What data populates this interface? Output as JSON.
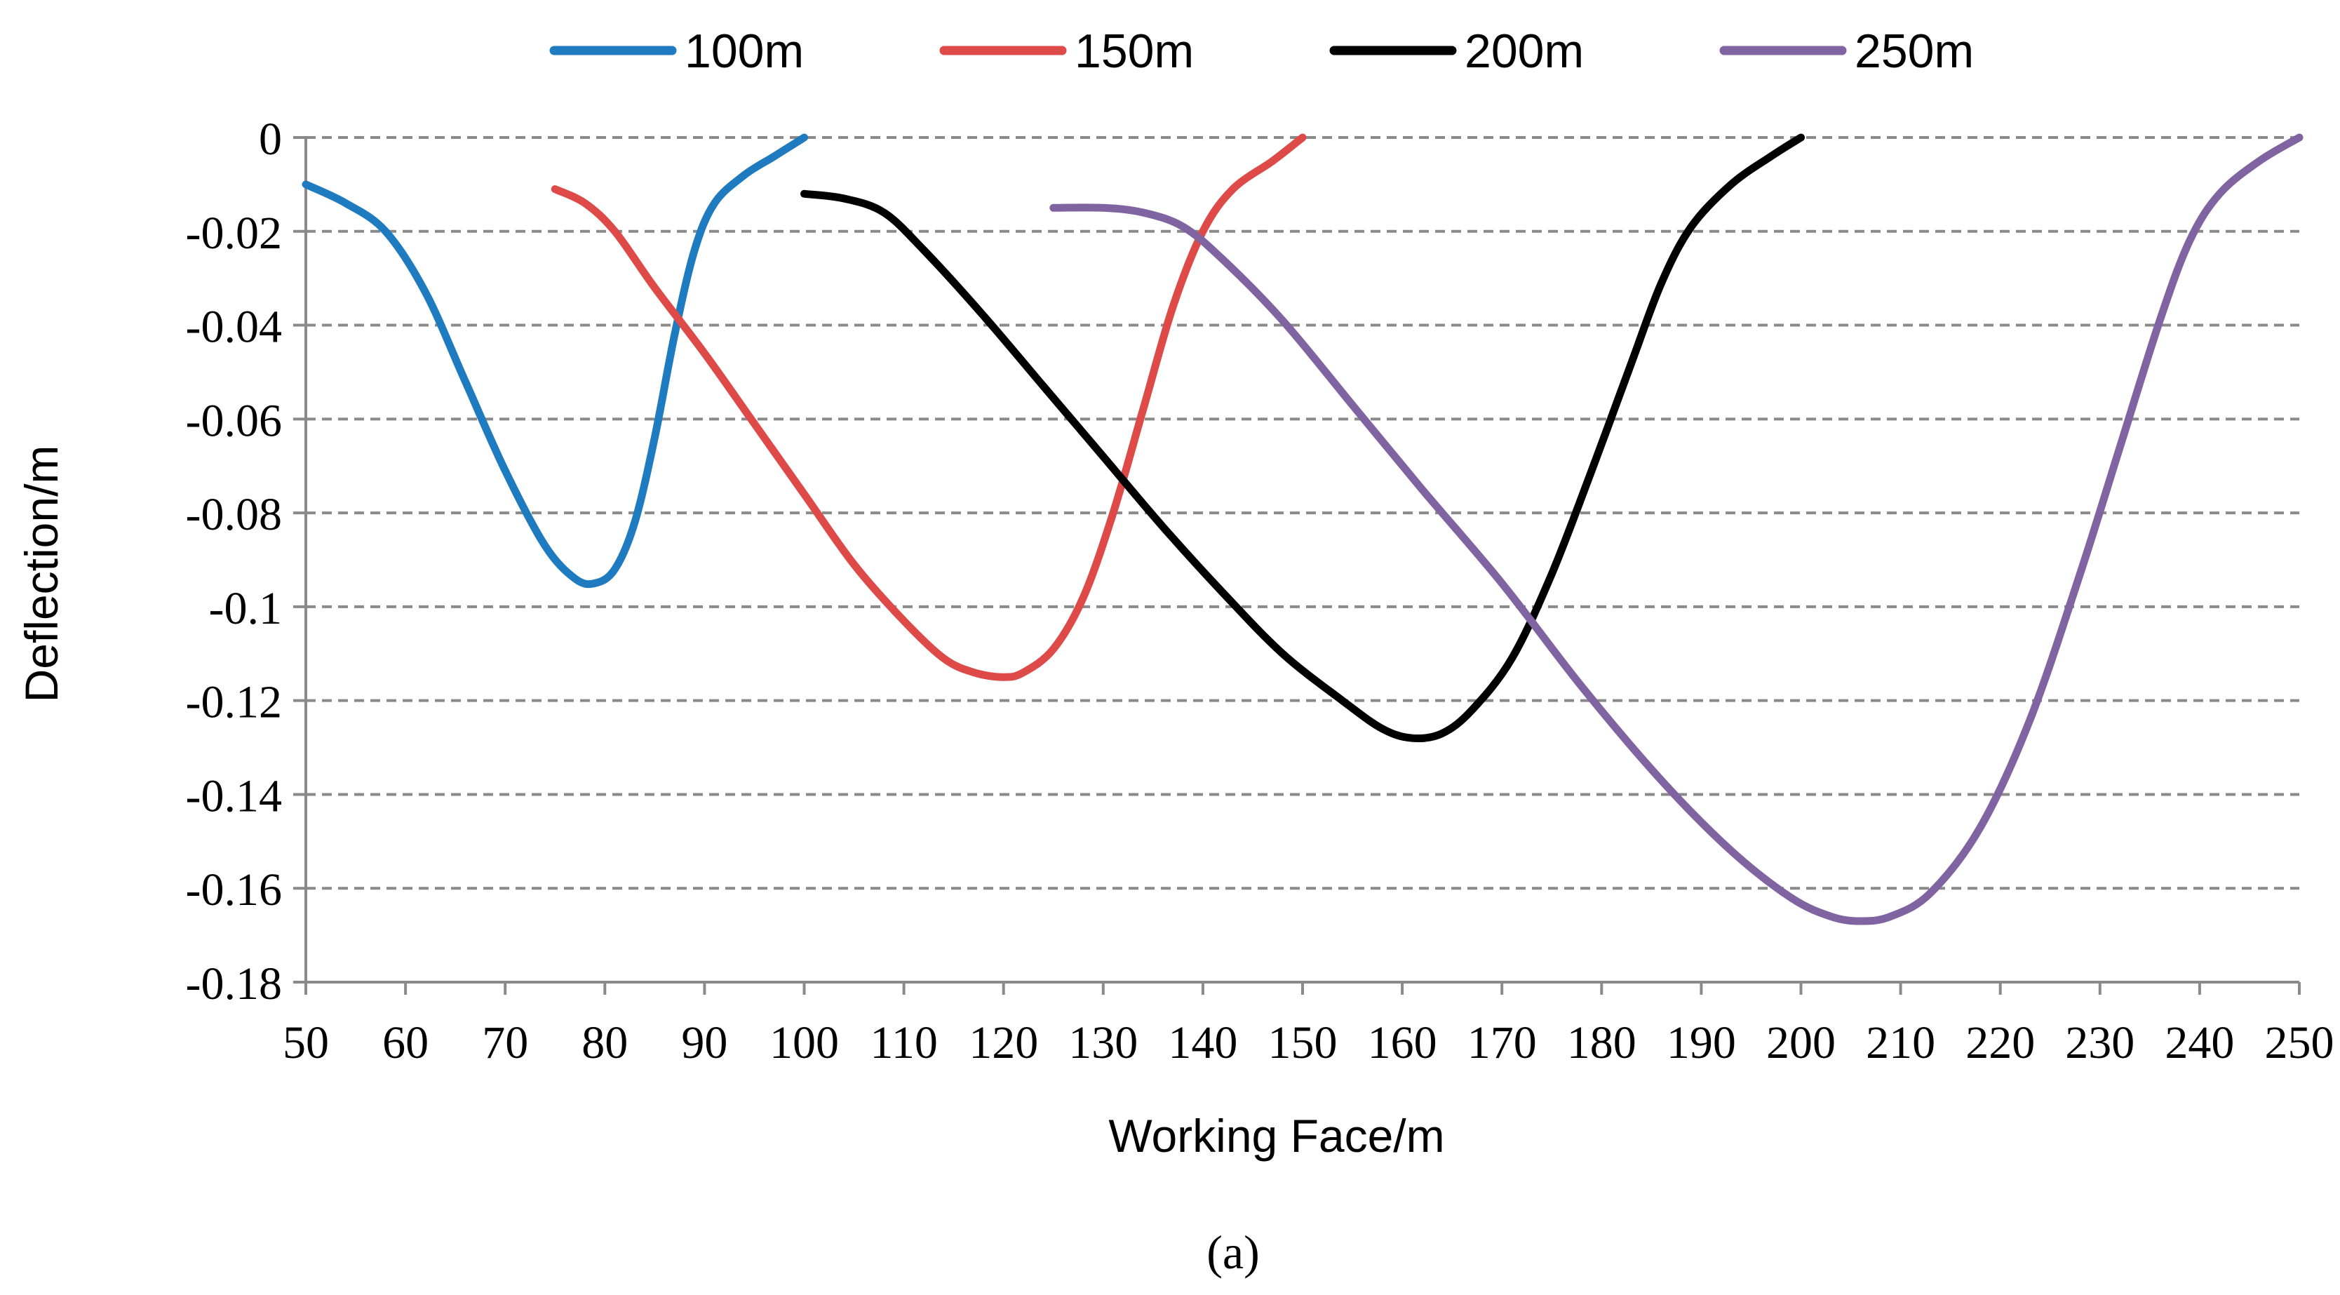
{
  "chart_data": {
    "type": "line",
    "xlabel": "Working Face/m",
    "ylabel": "Deflection/m",
    "caption": "(a)",
    "xlim": [
      50,
      250
    ],
    "ylim": [
      -0.18,
      0
    ],
    "xticks": [
      50,
      60,
      70,
      80,
      90,
      100,
      110,
      120,
      130,
      140,
      150,
      160,
      170,
      180,
      190,
      200,
      210,
      220,
      230,
      240,
      250
    ],
    "yticks": [
      0,
      -0.02,
      -0.04,
      -0.06,
      -0.08,
      -0.1,
      -0.12,
      -0.14,
      -0.16,
      -0.18
    ],
    "grid": "horizontal-dashed",
    "legend_position": "top",
    "series": [
      {
        "name": "100m",
        "color": "#1f7bc0",
        "points": [
          [
            50,
            -0.01
          ],
          [
            54,
            -0.014
          ],
          [
            58,
            -0.02
          ],
          [
            62,
            -0.033
          ],
          [
            66,
            -0.052
          ],
          [
            70,
            -0.071
          ],
          [
            74,
            -0.087
          ],
          [
            77,
            -0.094
          ],
          [
            79,
            -0.095
          ],
          [
            81,
            -0.092
          ],
          [
            83,
            -0.082
          ],
          [
            85,
            -0.064
          ],
          [
            87,
            -0.042
          ],
          [
            89,
            -0.024
          ],
          [
            91,
            -0.014
          ],
          [
            94,
            -0.008
          ],
          [
            97,
            -0.004
          ],
          [
            100,
            0.0
          ]
        ]
      },
      {
        "name": "150m",
        "color": "#de4a48",
        "points": [
          [
            75,
            -0.011
          ],
          [
            78,
            -0.014
          ],
          [
            81,
            -0.02
          ],
          [
            85,
            -0.032
          ],
          [
            90,
            -0.046
          ],
          [
            95,
            -0.061
          ],
          [
            100,
            -0.076
          ],
          [
            105,
            -0.091
          ],
          [
            110,
            -0.103
          ],
          [
            114,
            -0.111
          ],
          [
            117,
            -0.114
          ],
          [
            120,
            -0.115
          ],
          [
            122,
            -0.114
          ],
          [
            125,
            -0.109
          ],
          [
            128,
            -0.098
          ],
          [
            131,
            -0.08
          ],
          [
            134,
            -0.058
          ],
          [
            137,
            -0.036
          ],
          [
            140,
            -0.02
          ],
          [
            143,
            -0.011
          ],
          [
            147,
            -0.005
          ],
          [
            150,
            0.0
          ]
        ]
      },
      {
        "name": "200m",
        "color": "#000000",
        "points": [
          [
            100,
            -0.012
          ],
          [
            104,
            -0.013
          ],
          [
            108,
            -0.016
          ],
          [
            112,
            -0.024
          ],
          [
            118,
            -0.038
          ],
          [
            124,
            -0.053
          ],
          [
            130,
            -0.068
          ],
          [
            136,
            -0.083
          ],
          [
            142,
            -0.097
          ],
          [
            148,
            -0.11
          ],
          [
            154,
            -0.12
          ],
          [
            158,
            -0.126
          ],
          [
            161,
            -0.128
          ],
          [
            164,
            -0.127
          ],
          [
            167,
            -0.122
          ],
          [
            171,
            -0.111
          ],
          [
            175,
            -0.093
          ],
          [
            179,
            -0.071
          ],
          [
            183,
            -0.048
          ],
          [
            186,
            -0.031
          ],
          [
            189,
            -0.019
          ],
          [
            193,
            -0.01
          ],
          [
            197,
            -0.004
          ],
          [
            200,
            0.0
          ]
        ]
      },
      {
        "name": "250m",
        "color": "#8064a2",
        "points": [
          [
            125,
            -0.015
          ],
          [
            130,
            -0.015
          ],
          [
            134,
            -0.016
          ],
          [
            138,
            -0.019
          ],
          [
            142,
            -0.026
          ],
          [
            148,
            -0.039
          ],
          [
            155,
            -0.057
          ],
          [
            162,
            -0.075
          ],
          [
            170,
            -0.095
          ],
          [
            178,
            -0.117
          ],
          [
            186,
            -0.137
          ],
          [
            193,
            -0.152
          ],
          [
            199,
            -0.162
          ],
          [
            203,
            -0.166
          ],
          [
            206,
            -0.167
          ],
          [
            209,
            -0.166
          ],
          [
            213,
            -0.161
          ],
          [
            218,
            -0.147
          ],
          [
            223,
            -0.124
          ],
          [
            228,
            -0.093
          ],
          [
            232,
            -0.066
          ],
          [
            236,
            -0.039
          ],
          [
            239,
            -0.022
          ],
          [
            242,
            -0.012
          ],
          [
            246,
            -0.005
          ],
          [
            250,
            0.0
          ]
        ]
      }
    ]
  }
}
